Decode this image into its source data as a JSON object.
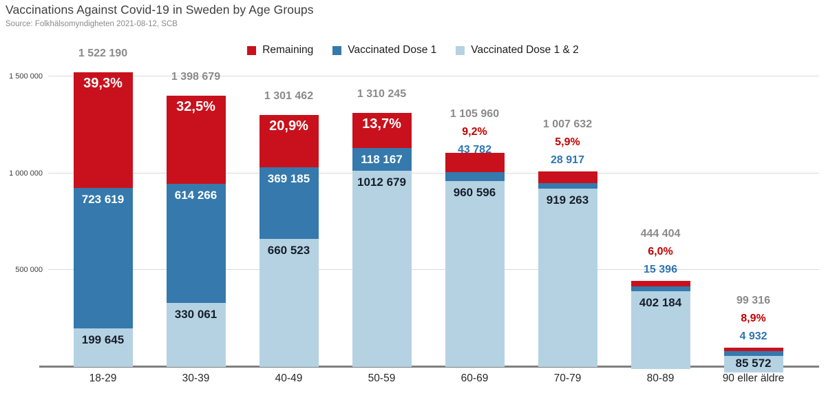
{
  "header": {
    "title": "Vaccinations Against Covid-19 in Sweden by Age Groups",
    "source": "Source: Folkhälsomyndigheten 2021-08-12, SCB"
  },
  "legend": [
    {
      "label": "Remaining",
      "color": "#c8111c"
    },
    {
      "label": "Vaccinated Dose 1",
      "color": "#3579ad"
    },
    {
      "label": "Vaccinated Dose 1 & 2",
      "color": "#b5d2e3"
    }
  ],
  "chart_data": {
    "type": "bar",
    "stacked": true,
    "title": "Vaccinations Against Covid-19 in Sweden by Age Groups",
    "xlabel": "",
    "ylabel": "",
    "ylim": [
      0,
      1575000
    ],
    "grid": true,
    "legend_position": "top",
    "categories": [
      "18-29",
      "30-39",
      "40-49",
      "50-59",
      "60-69",
      "70-79",
      "80-89",
      "90 eller äldre"
    ],
    "series": [
      {
        "name": "Vaccinated Dose 1 & 2",
        "color": "#b5d2e3",
        "values": [
          199645,
          330061,
          660523,
          1012679,
          960596,
          919263,
          402184,
          85572
        ]
      },
      {
        "name": "Vaccinated Dose 1",
        "color": "#3579ad",
        "values": [
          723619,
          614266,
          369185,
          118167,
          43782,
          28917,
          15396,
          4932
        ]
      },
      {
        "name": "Remaining",
        "color": "#c8111c",
        "values": [
          598926,
          454352,
          271754,
          179399,
          101582,
          59452,
          26824,
          8812
        ]
      }
    ],
    "y_axis": {
      "ticks": [
        {
          "value": 500000,
          "label": "500 000"
        },
        {
          "value": 1000000,
          "label": "1 000 000"
        },
        {
          "value": 1500000,
          "label": "1 500 000"
        }
      ]
    },
    "bars": [
      {
        "category": "18-29",
        "total": 1522190,
        "total_label": "1 522 190",
        "remaining_pct_label": "39,3%",
        "dose1": 723619,
        "dose1_label": "723 619",
        "dose12": 199645,
        "dose12_label": "199 645"
      },
      {
        "category": "30-39",
        "total": 1398679,
        "total_label": "1 398 679",
        "remaining_pct_label": "32,5%",
        "dose1": 614266,
        "dose1_label": "614 266",
        "dose12": 330061,
        "dose12_label": "330 061"
      },
      {
        "category": "40-49",
        "total": 1301462,
        "total_label": "1 301 462",
        "remaining_pct_label": "20,9%",
        "dose1": 369185,
        "dose1_label": "369 185",
        "dose12": 660523,
        "dose12_label": "660 523"
      },
      {
        "category": "50-59",
        "total": 1310245,
        "total_label": "1 310 245",
        "remaining_pct_label": "13,7%",
        "dose1": 118167,
        "dose1_label": "118 167",
        "dose12": 1012679,
        "dose12_label": "1012 679"
      },
      {
        "category": "60-69",
        "total": 1105960,
        "total_label": "1 105 960",
        "remaining_pct_label": "9,2%",
        "dose1": 43782,
        "dose1_label": "43 782",
        "dose12": 960596,
        "dose12_label": "960 596"
      },
      {
        "category": "70-79",
        "total": 1007632,
        "total_label": "1 007 632",
        "remaining_pct_label": "5,9%",
        "dose1": 28917,
        "dose1_label": "28 917",
        "dose12": 919263,
        "dose12_label": "919 263"
      },
      {
        "category": "80-89",
        "total": 444404,
        "total_label": "444 404",
        "remaining_pct_label": "6,0%",
        "dose1": 15396,
        "dose1_label": "15 396",
        "dose12": 402184,
        "dose12_label": "402 184"
      },
      {
        "category": "90 eller äldre",
        "total": 99316,
        "total_label": "99 316",
        "remaining_pct_label": "8,9%",
        "dose1": 4932,
        "dose1_label": "4 932",
        "dose12": 85572,
        "dose12_label": "85 572"
      }
    ]
  }
}
